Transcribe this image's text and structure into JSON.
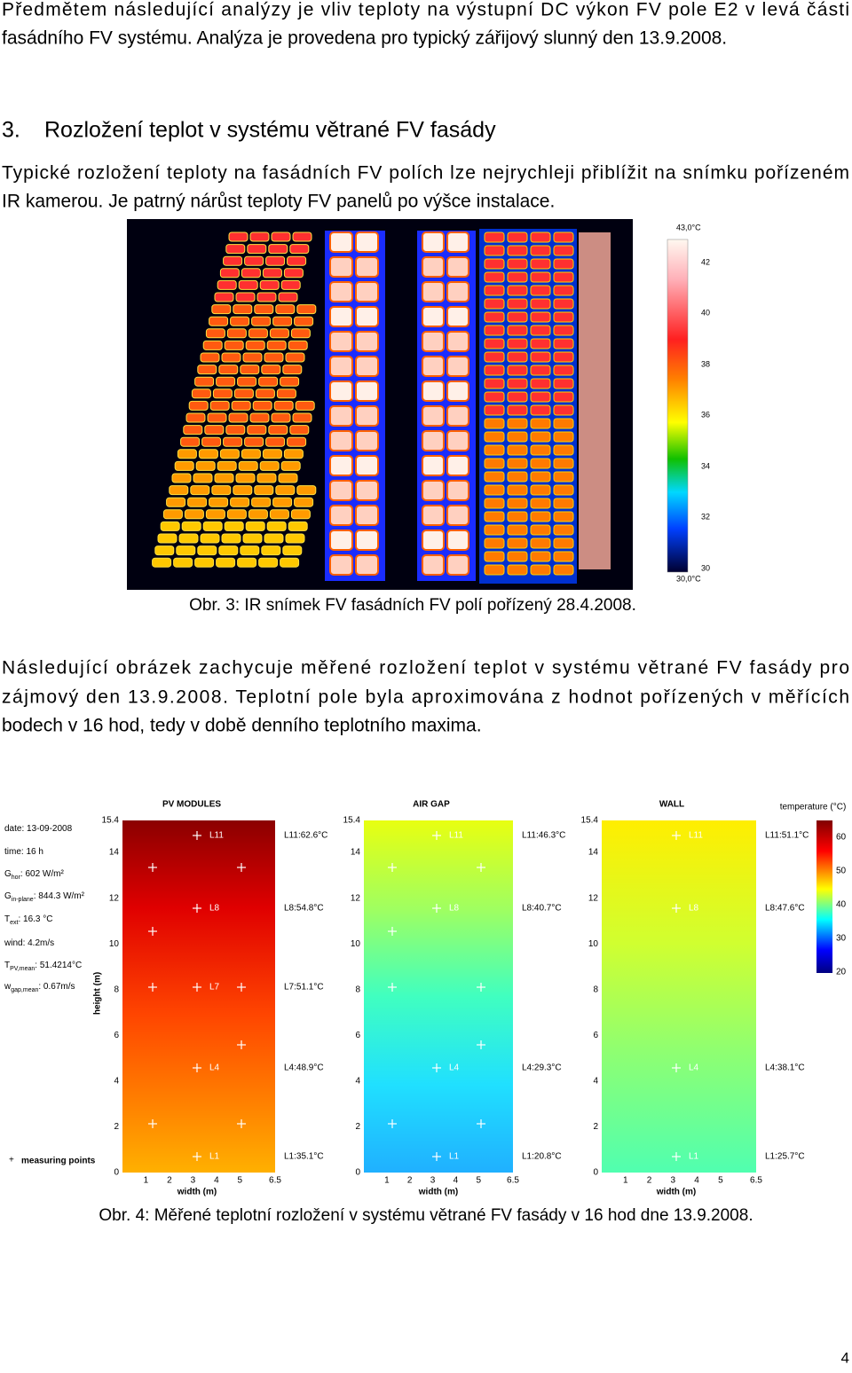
{
  "intro": {
    "lines": [
      "Předmětem následující analýzy je vliv teploty na výstupní DC výkon FV pole E2 v levá části",
      "fasádního FV systému. Analýza je provedena pro typický zářijový slunný den 13.9.2008."
    ]
  },
  "section": {
    "number": "3.",
    "title": "Rozložení teplot v systému větrané FV fasády"
  },
  "section_text": {
    "lines": [
      "Typické rozložení teploty na fasádních FV polích lze nejrychleji přiblížit na snímku pořízeném",
      "IR kamerou. Je patrný nárůst teploty FV panelů po výšce instalace."
    ]
  },
  "figure3": {
    "scale_labels": [
      "43,0°C",
      "42",
      "40",
      "38",
      "36",
      "34",
      "32",
      "30",
      "30,0°C"
    ],
    "caption": "Obr. 3: IR snímek FV fasádních FV polí pořízený 28.4.2008."
  },
  "paragraph2": {
    "lines": [
      "Následující obrázek zachycuje měřené rozložení teplot v systému větrané FV fasády pro",
      "zájmový den 13.9.2008. Teplotní pole byla aproximována z hodnot pořízených v měřících",
      "bodech v 16 hod, tedy v době denního teplotního maxima."
    ]
  },
  "figure4": {
    "info": [
      {
        "text": "date: 13-09-2008"
      },
      {
        "text": "time: 16 h"
      },
      {
        "symbol": "G",
        "sub": "hor",
        "text": ": 602 W/m²"
      },
      {
        "symbol": "G",
        "sub": "in-plane",
        "text": ": 844.3 W/m²"
      },
      {
        "symbol": "T",
        "sub": "ext",
        "text": ": 16.3 °C"
      },
      {
        "text": "wind: 4.2m/s"
      },
      {
        "symbol": "T",
        "sub": "PV,mean",
        "text": ": 51.4214°C"
      },
      {
        "symbol": "w",
        "sub": "gap,mean",
        "text": ": 0.67m/s"
      }
    ],
    "y_axis_label": "height (m)",
    "legend": "measuring points",
    "panels": [
      {
        "title": "PV MODULES",
        "yticks": [
          "15.4",
          "14",
          "12",
          "10",
          "8",
          "6",
          "4",
          "2",
          "0"
        ],
        "xticks": [
          "1",
          "2",
          "3",
          "4",
          "5",
          "6.5"
        ],
        "x_axis_label": "width (m)",
        "point_labels": [
          "L11",
          "L8",
          "L7",
          "L4",
          "L1"
        ],
        "readings": [
          "L11:62.6°C",
          "L8:54.8°C",
          "L7:51.1°C",
          "L4:48.9°C",
          "L1:35.1°C"
        ]
      },
      {
        "title": "AIR GAP",
        "yticks": [
          "15.4",
          "14",
          "12",
          "10",
          "8",
          "6",
          "4",
          "2",
          "0"
        ],
        "xticks": [
          "1",
          "2",
          "3",
          "4",
          "5",
          "6.5"
        ],
        "x_axis_label": "width (m)",
        "point_labels": [
          "L11",
          "L8",
          "L4",
          "L1"
        ],
        "readings": [
          "L11:46.3°C",
          "L8:40.7°C",
          "L4:29.3°C",
          "L1:20.8°C"
        ]
      },
      {
        "title": "WALL",
        "yticks": [
          "15.4",
          "14",
          "12",
          "10",
          "8",
          "6",
          "4",
          "2",
          "0"
        ],
        "xticks": [
          "1",
          "2",
          "3",
          "4",
          "5",
          "6.5"
        ],
        "x_axis_label": "width (m)",
        "point_labels": [
          "L11",
          "L8",
          "L4",
          "L1"
        ],
        "readings": [
          "L11:51.1°C",
          "L8:47.6°C",
          "L4:38.1°C",
          "L1:25.7°C"
        ]
      }
    ],
    "colorbar": {
      "title": "temperature (°C)",
      "ticks": [
        "60",
        "50",
        "40",
        "30",
        "20"
      ]
    },
    "caption": "Obr. 4: Měřené teplotní rozložení v systému větrané FV fasády v 16 hod dne 13.9.2008."
  },
  "page_number": "4"
}
